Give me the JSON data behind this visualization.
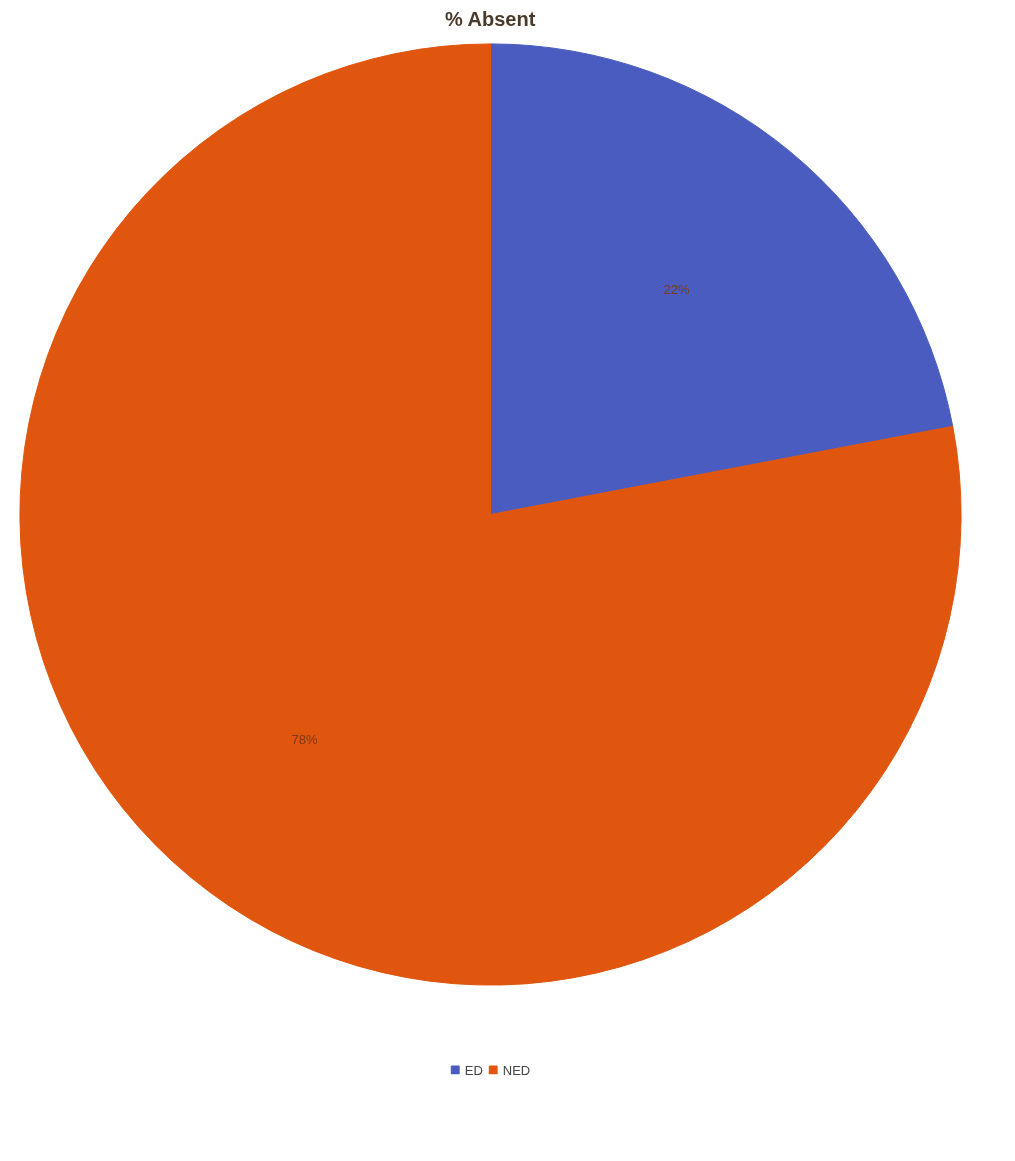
{
  "chart_data": {
    "type": "pie",
    "title": "% Absent",
    "categories": [
      "ED",
      "NED"
    ],
    "values": [
      22,
      78
    ],
    "colors": [
      "#4a5cc0",
      "#e0560e"
    ],
    "value_labels": [
      "22%",
      "78%"
    ],
    "legend": "bottom"
  }
}
